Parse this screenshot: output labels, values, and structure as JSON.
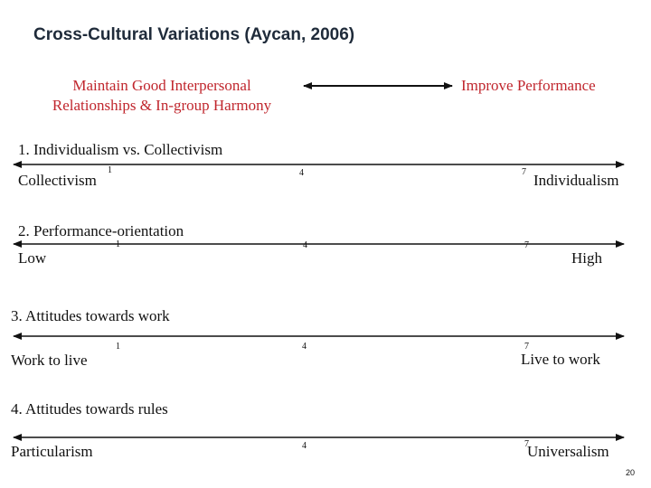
{
  "title": "Cross-Cultural Variations (Aycan, 2006)",
  "top": {
    "left_line1": "Maintain Good Interpersonal",
    "left_line2": "Relationships & In-group Harmony",
    "right": "Improve Performance",
    "accent_color": "#c0262d"
  },
  "rows": [
    {
      "heading": "1. Individualism vs. Collectivism",
      "left": "Collectivism",
      "right": "Individualism",
      "scale": [
        "1",
        "4",
        "7"
      ]
    },
    {
      "heading": "2. Performance-orientation",
      "left": "Low",
      "right": "High",
      "scale": [
        "1",
        "4",
        "7"
      ]
    },
    {
      "heading": "3. Attitudes towards work",
      "left": "Work to live",
      "right": "Live to work",
      "scale": [
        "1",
        "4",
        "7"
      ]
    },
    {
      "heading": "4. Attitudes towards rules",
      "left": "Particularism",
      "right": "Universalism",
      "scale": [
        "4",
        "7"
      ]
    }
  ],
  "page_number": "20"
}
